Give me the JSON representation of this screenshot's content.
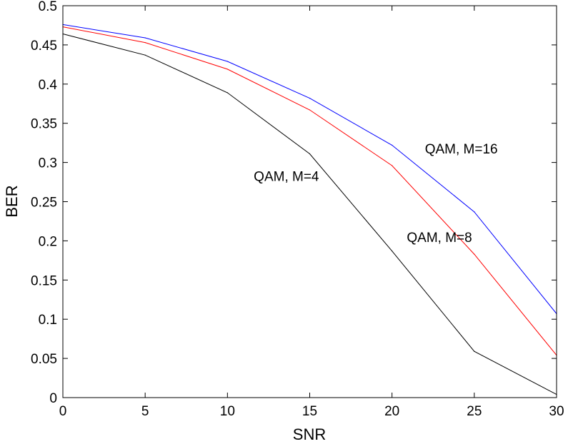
{
  "chart_data": {
    "type": "line",
    "title": "",
    "xlabel": "SNR",
    "ylabel": "BER",
    "xlim": [
      0,
      30
    ],
    "ylim": [
      0,
      0.5
    ],
    "x_ticks": [
      "0",
      "5",
      "10",
      "15",
      "20",
      "25",
      "30"
    ],
    "y_ticks": [
      "0",
      "0.05",
      "0.1",
      "0.15",
      "0.2",
      "0.25",
      "0.3",
      "0.35",
      "0.4",
      "0.45",
      "0.5"
    ],
    "grid": false,
    "legend": "none",
    "x": [
      0,
      5,
      10,
      15,
      20,
      25,
      30
    ],
    "series": [
      {
        "name": "QAM, M=16",
        "color": "#0000ff",
        "values": [
          0.476,
          0.459,
          0.429,
          0.382,
          0.322,
          0.237,
          0.107
        ]
      },
      {
        "name": "QAM, M=8",
        "color": "#ff0000",
        "values": [
          0.473,
          0.453,
          0.419,
          0.367,
          0.296,
          0.183,
          0.054
        ]
      },
      {
        "name": "QAM, M=4",
        "color": "#000000",
        "values": [
          0.464,
          0.437,
          0.389,
          0.311,
          0.187,
          0.059,
          0.004
        ]
      }
    ],
    "annotations": [
      {
        "text": "QAM, M=16",
        "x": 22,
        "y": 0.318
      },
      {
        "text": "QAM, M=8",
        "x": 20.9,
        "y": 0.205
      },
      {
        "text": "QAM, M=4",
        "x": 11.6,
        "y": 0.283
      }
    ]
  }
}
